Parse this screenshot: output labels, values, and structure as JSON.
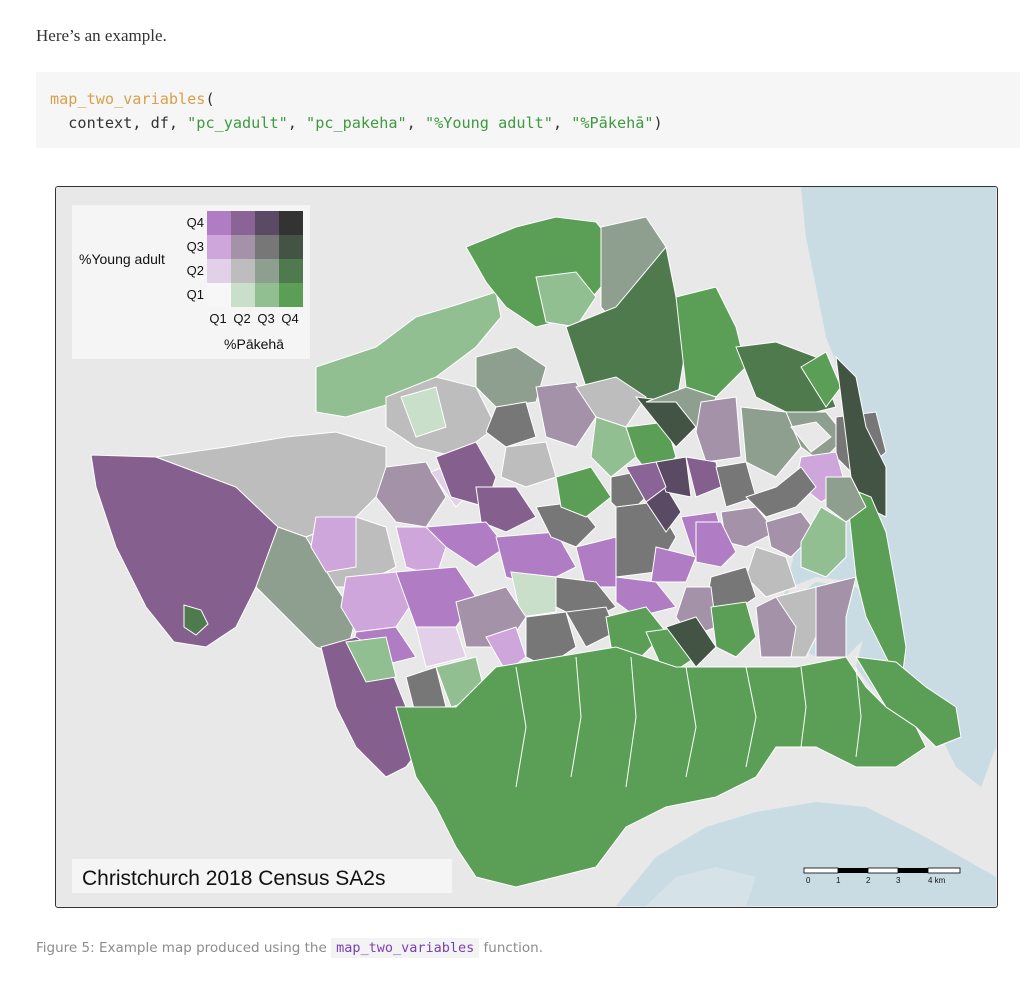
{
  "intro_text": "Here’s an example.",
  "code": {
    "fn_name": "map_two_variables",
    "open_paren": "(",
    "args_prefix": "  context, df, ",
    "arg1": "\"pc_yadult\"",
    "arg2": "\"pc_pakeha\"",
    "arg3": "\"%Young adult\"",
    "arg4": "\"%Pākehā\"",
    "sep": ", ",
    "close_paren": ")"
  },
  "map": {
    "title": "Christchurch 2018 Census SA2s",
    "legend": {
      "y_title": "%Young adult",
      "x_title": "%Pākehā",
      "row_labels": [
        "Q4",
        "Q3",
        "Q2",
        "Q1"
      ],
      "col_labels": [
        "Q1",
        "Q2",
        "Q3",
        "Q4"
      ],
      "grid_colors": [
        [
          "#b07cc4",
          "#8a6497",
          "#5b4a63",
          "#333333"
        ],
        [
          "#cfa6dc",
          "#a392a8",
          "#777777",
          "#445444"
        ],
        [
          "#e2cfe8",
          "#bdbdbd",
          "#8f9f8f",
          "#4e7a4e"
        ],
        [
          "#f7f7f7",
          "#c9dfc9",
          "#92bf92",
          "#5a9f55"
        ]
      ]
    },
    "scale_bar": {
      "labels": [
        "0",
        "1",
        "2",
        "3",
        "4 km"
      ]
    },
    "colors": {
      "water": "#c9dbe3",
      "land": "#e8e8e8",
      "border": "#ffffff"
    }
  },
  "caption": {
    "prefix": "Figure 5: Example map produced using the ",
    "code": "map_two_variables",
    "suffix": " function."
  }
}
